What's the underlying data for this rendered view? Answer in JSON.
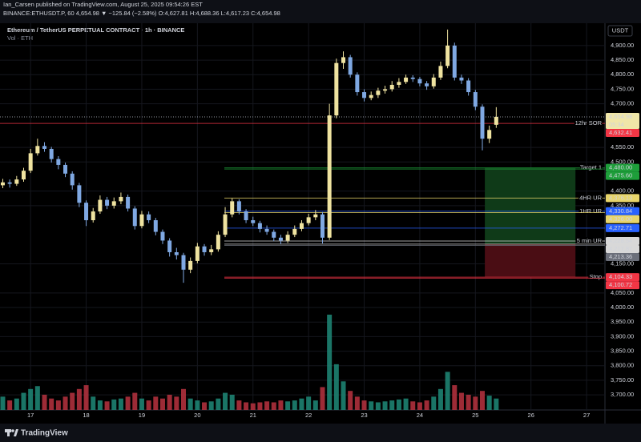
{
  "chart_data": {
    "type": "candlestick",
    "publisher": "Ian_Carsen published on TradingView.com, August 25, 2025 09:54:26 EST",
    "ticker_line": "BINANCE:ETHUSDT.P, 60  4,654.98 ▼ −125.84 (−2.58%)  O:4,627.81 H:4,688.36 L:4,617.23 C:4,654.98",
    "title": "Ethereum / TetherUS PERPETUAL CONTRACT · 1h · BINANCE",
    "volume_label": "Vol · ETH",
    "currency": "USDT",
    "brand": "TradingView",
    "colors": {
      "up": "#efe3a0",
      "down": "#7fa8e2",
      "volume_up": "#1f8a78",
      "volume_down": "#b8323f"
    },
    "xlim": [
      16.45,
      27.33
    ],
    "xticks": [
      17,
      18,
      19,
      20,
      21,
      22,
      23,
      24,
      25,
      26,
      27
    ],
    "ylim": [
      3648,
      4974
    ],
    "yticks": [
      {
        "value": 4900,
        "label": "4,900.00"
      },
      {
        "value": 4850,
        "label": "4,850.00"
      },
      {
        "value": 4800,
        "label": "4,800.00"
      },
      {
        "value": 4750,
        "label": "4,750.00"
      },
      {
        "value": 4700,
        "label": "4,700.00"
      },
      {
        "value": 4550,
        "label": "4,550.00"
      },
      {
        "value": 4500,
        "label": "4,500.00"
      },
      {
        "value": 4400,
        "label": "4,400.00"
      },
      {
        "value": 4350,
        "label": "4,350.00"
      },
      {
        "value": 4150,
        "label": "4,150.00"
      },
      {
        "value": 4050,
        "label": "4,050.00"
      },
      {
        "value": 4000,
        "label": "4,000.00"
      },
      {
        "value": 3950,
        "label": "3,950.00"
      },
      {
        "value": 3900,
        "label": "3,900.00"
      },
      {
        "value": 3850,
        "label": "3,850.00"
      },
      {
        "value": 3800,
        "label": "3,800.00"
      },
      {
        "value": 3750,
        "label": "3,750.00"
      },
      {
        "value": 3700,
        "label": "3,700.00"
      }
    ],
    "grid": true,
    "volume_lim": [
      0,
      105
    ],
    "candles": {
      "x": [
        16.5,
        16.625,
        16.75,
        16.875,
        17,
        17.125,
        17.25,
        17.375,
        17.5,
        17.625,
        17.75,
        17.875,
        18,
        18.125,
        18.25,
        18.375,
        18.5,
        18.625,
        18.75,
        18.875,
        19,
        19.125,
        19.25,
        19.375,
        19.5,
        19.625,
        19.75,
        19.875,
        20,
        20.125,
        20.25,
        20.375,
        20.5,
        20.625,
        20.75,
        20.875,
        21,
        21.125,
        21.25,
        21.375,
        21.5,
        21.625,
        21.75,
        21.875,
        22,
        22.125,
        22.25,
        22.375,
        22.5,
        22.625,
        22.75,
        22.875,
        23,
        23.125,
        23.25,
        23.375,
        23.5,
        23.625,
        23.75,
        23.875,
        24,
        24.125,
        24.25,
        24.375,
        24.5,
        24.625,
        24.75,
        24.875,
        25,
        25.125,
        25.25,
        25.375
      ],
      "open": [
        4420,
        4430,
        4425,
        4440,
        4470,
        4530,
        4555,
        4545,
        4510,
        4490,
        4460,
        4420,
        4360,
        4300,
        4330,
        4370,
        4350,
        4365,
        4380,
        4340,
        4280,
        4320,
        4300,
        4260,
        4230,
        4190,
        4180,
        4130,
        4160,
        4210,
        4190,
        4200,
        4250,
        4320,
        4365,
        4330,
        4300,
        4290,
        4270,
        4260,
        4240,
        4230,
        4250,
        4270,
        4290,
        4310,
        4320,
        4240,
        4660,
        4840,
        4860,
        4800,
        4740,
        4720,
        4730,
        4745,
        4750,
        4765,
        4775,
        4790,
        4785,
        4770,
        4760,
        4790,
        4830,
        4900,
        4790,
        4780,
        4740,
        4690,
        4580,
        4627.81
      ],
      "high": [
        4442,
        4440,
        4452,
        4480,
        4545,
        4580,
        4568,
        4552,
        4520,
        4498,
        4468,
        4428,
        4368,
        4342,
        4385,
        4380,
        4378,
        4395,
        4388,
        4348,
        4332,
        4330,
        4308,
        4268,
        4238,
        4205,
        4188,
        4172,
        4222,
        4218,
        4215,
        4262,
        4345,
        4375,
        4372,
        4338,
        4312,
        4298,
        4282,
        4268,
        4250,
        4262,
        4282,
        4300,
        4322,
        4335,
        4328,
        4700,
        4855,
        4880,
        4868,
        4808,
        4750,
        4742,
        4755,
        4762,
        4778,
        4788,
        4800,
        4798,
        4792,
        4778,
        4802,
        4845,
        4955,
        4910,
        4800,
        4788,
        4748,
        4698,
        4625,
        4688.36
      ],
      "low": [
        4410,
        4412,
        4418,
        4432,
        4462,
        4522,
        4535,
        4498,
        4475,
        4448,
        4405,
        4345,
        4280,
        4292,
        4322,
        4338,
        4340,
        4355,
        4330,
        4268,
        4272,
        4290,
        4248,
        4218,
        4175,
        4165,
        4085,
        4118,
        4152,
        4178,
        4180,
        4192,
        4242,
        4310,
        4320,
        4290,
        4280,
        4258,
        4250,
        4228,
        4218,
        4222,
        4242,
        4262,
        4282,
        4300,
        4220,
        4232,
        4650,
        4820,
        4790,
        4728,
        4708,
        4712,
        4720,
        4735,
        4742,
        4755,
        4768,
        4775,
        4760,
        4748,
        4752,
        4782,
        4822,
        4780,
        4768,
        4728,
        4678,
        4540,
        4565,
        4617.23
      ],
      "close": [
        4430,
        4425,
        4440,
        4470,
        4530,
        4555,
        4545,
        4510,
        4490,
        4460,
        4420,
        4360,
        4300,
        4330,
        4370,
        4350,
        4365,
        4380,
        4340,
        4280,
        4320,
        4300,
        4260,
        4230,
        4190,
        4180,
        4130,
        4160,
        4210,
        4190,
        4200,
        4250,
        4320,
        4365,
        4330,
        4300,
        4290,
        4270,
        4260,
        4240,
        4230,
        4250,
        4270,
        4290,
        4310,
        4320,
        4240,
        4660,
        4840,
        4860,
        4800,
        4740,
        4720,
        4730,
        4745,
        4750,
        4765,
        4775,
        4790,
        4785,
        4770,
        4760,
        4790,
        4830,
        4900,
        4790,
        4780,
        4740,
        4690,
        4580,
        4610,
        4654.98
      ],
      "volume": [
        14,
        10,
        12,
        18,
        22,
        25,
        16,
        12,
        10,
        14,
        18,
        22,
        26,
        14,
        10,
        9,
        11,
        12,
        14,
        18,
        12,
        10,
        14,
        12,
        16,
        14,
        22,
        12,
        10,
        8,
        9,
        12,
        18,
        16,
        10,
        8,
        7,
        8,
        9,
        8,
        10,
        9,
        10,
        12,
        14,
        10,
        24,
        100,
        48,
        30,
        20,
        14,
        10,
        9,
        8,
        9,
        10,
        11,
        12,
        9,
        8,
        10,
        14,
        22,
        40,
        26,
        18,
        16,
        14,
        20,
        15,
        12
      ]
    },
    "last_price": {
      "value": 4654.98,
      "label": "4,654.98"
    },
    "countdown": "05:34",
    "levels": [
      {
        "name": "12hr SOR",
        "value": 4632.41,
        "label": "4,632.41",
        "color": "#f23645"
      },
      {
        "name": "Target 1",
        "value": 4480,
        "label": "4,480.00",
        "color": "#1e9e3a"
      },
      {
        "value": 4475.6,
        "label": "4,475.60",
        "color": "#1e9e3a"
      },
      {
        "name": "4HR UR",
        "value": 4376.13,
        "label": "4,376.13",
        "color": "#e8d56a"
      },
      {
        "name": "1HR UR",
        "value": 4330.84,
        "label": "4,330.84",
        "color": "#2962ff"
      },
      {
        "value": 4326,
        "label": "4,326.00",
        "color": "#e8d56a"
      },
      {
        "value": 4272.71,
        "label": "4,272.71",
        "color": "#2962ff"
      },
      {
        "name": "5 min UR",
        "value": 4228.54,
        "label": "4,228.54",
        "color": "#d8d8d8"
      },
      {
        "value": 4217.87,
        "label": "4,217.87",
        "color": "#d8d8d8"
      },
      {
        "value": 4213.36,
        "label": "4,213.36",
        "color": "#6b6f7a"
      },
      {
        "name": "Stop",
        "value": 4104.33,
        "label": "4,104.33",
        "color": "#f23645"
      },
      {
        "value": 4100.72,
        "label": "4,100.72",
        "color": "#f23645"
      }
    ],
    "position": {
      "x": [
        25.17,
        26.8
      ],
      "target": 4480,
      "entry": 4217.87,
      "stop": 4104.33
    }
  }
}
